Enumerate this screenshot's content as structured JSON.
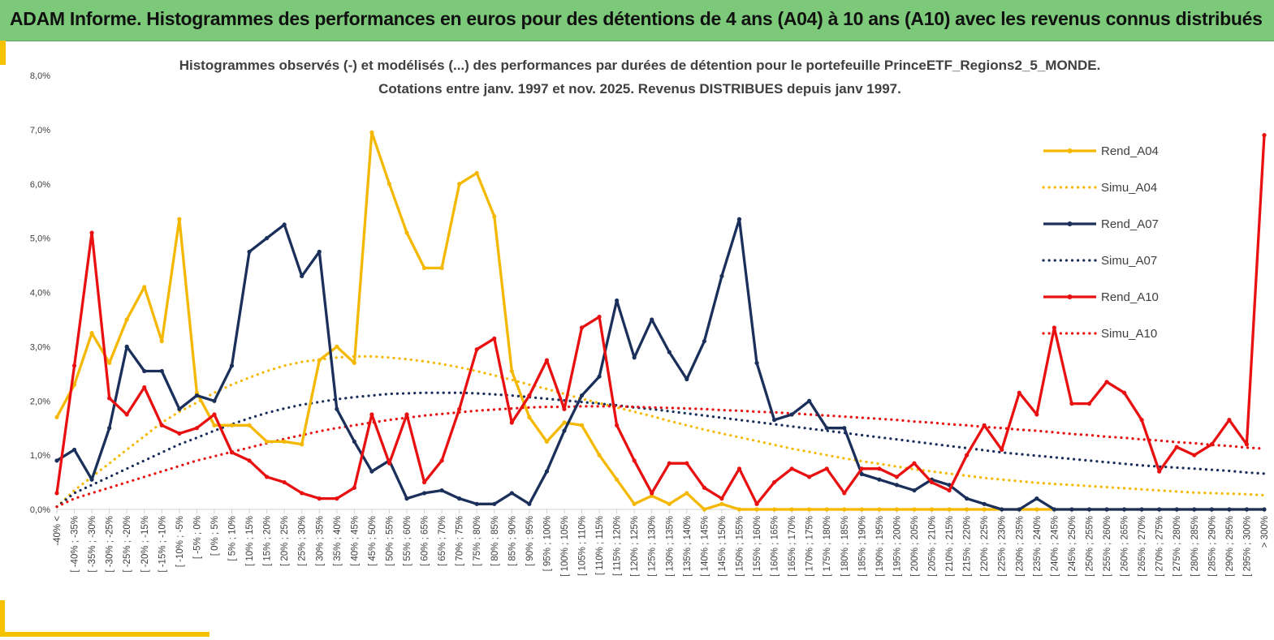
{
  "header": {
    "title": "ADAM Informe. Histogrammes des performances en euros pour des détentions de 4 ans (A04) à 10 ans (A10) avec les revenus connus distribués"
  },
  "chart_data": {
    "type": "line",
    "title_line1": "Histogrammes observés (-) et modélisés (...) des performances par durées de détention pour le portefeuille PrinceETF_Regions2_5_MONDE.",
    "title_line2": "Cotations entre janv. 1997 et nov. 2025. Revenus DISTRIBUES depuis janv 1997.",
    "ylim": [
      0,
      8
    ],
    "yticks": [
      "0,0%",
      "1,0%",
      "2,0%",
      "3,0%",
      "4,0%",
      "5,0%",
      "6,0%",
      "7,0%",
      "8,0%"
    ],
    "categories": [
      "-40% <",
      "[ -40% ; -35%",
      "[ -35% ; -30%",
      "[ -30% ; -25%",
      "[ -25% ; -20%",
      "[ -20% ; -15%",
      "[ -15% ; -10%",
      "[ -10% ; -5%",
      "[ -5% ; 0%",
      "[ 0% ; 5%",
      "[ 5% ; 10%",
      "[ 10% ; 15%",
      "[ 15% ; 20%",
      "[ 20% ; 25%",
      "[ 25% ; 30%",
      "[ 30% ; 35%",
      "[ 35% ; 40%",
      "[ 40% ; 45%",
      "[ 45% ; 50%",
      "[ 50% ; 55%",
      "[ 55% ; 60%",
      "[ 60% ; 65%",
      "[ 65% ; 70%",
      "[ 70% ; 75%",
      "[ 75% ; 80%",
      "[ 80% ; 85%",
      "[ 85% ; 90%",
      "[ 90% ; 95%",
      "[ 95% ; 100%",
      "[ 100% ; 105%",
      "[ 105% ; 110%",
      "[ 110% ; 115%",
      "[ 115% ; 120%",
      "[ 120% ; 125%",
      "[ 125% ; 130%",
      "[ 130% ; 135%",
      "[ 135% ; 140%",
      "[ 140% ; 145%",
      "[ 145% ; 150%",
      "[ 150% ; 155%",
      "[ 155% ; 160%",
      "[ 160% ; 165%",
      "[ 165% ; 170%",
      "[ 170% ; 175%",
      "[ 175% ; 180%",
      "[ 180% ; 185%",
      "[ 185% ; 190%",
      "[ 190% ; 195%",
      "[ 195% ; 200%",
      "[ 200% ; 205%",
      "[ 205% ; 210%",
      "[ 210% ; 215%",
      "[ 215% ; 220%",
      "[ 220% ; 225%",
      "[ 225% ; 230%",
      "[ 230% ; 235%",
      "[ 235% ; 240%",
      "[ 240% ; 245%",
      "[ 245% ; 250%",
      "[ 250% ; 255%",
      "[ 255% ; 260%",
      "[ 260% ; 265%",
      "[ 265% ; 270%",
      "[ 270% ; 275%",
      "[ 275% ; 280%",
      "[ 280% ; 285%",
      "[ 285% ; 290%",
      "[ 290% ; 295%",
      "[ 295% ; 300%",
      "> 300%"
    ],
    "series": [
      {
        "name": "Rend_A04",
        "style": "solid",
        "color": "#f5b800",
        "values": [
          1.7,
          2.3,
          3.25,
          2.7,
          3.5,
          4.1,
          3.1,
          5.35,
          2.15,
          1.55,
          1.55,
          1.55,
          1.25,
          1.25,
          1.2,
          2.75,
          3.0,
          2.7,
          6.95,
          6.0,
          5.1,
          4.45,
          4.45,
          6.0,
          6.2,
          5.4,
          2.55,
          1.7,
          1.25,
          1.6,
          1.55,
          1.0,
          0.55,
          0.1,
          0.25,
          0.1,
          0.3,
          0.0,
          0.1,
          0.0,
          0.0,
          0.0,
          0.0,
          0.0,
          0.0,
          0.0,
          0.0,
          0.0,
          0.0,
          0.0,
          0.0,
          0.0,
          0.0,
          0.0,
          0.0,
          0.0,
          0.0,
          0.0,
          0.0,
          0.0,
          0.0,
          0.0,
          0.0,
          0.0,
          0.0,
          0.0,
          0.0,
          0.0,
          0.0,
          0.0
        ]
      },
      {
        "name": "Simu_A04",
        "style": "dotted",
        "color": "#f5b800",
        "values": [
          0.05,
          0.35,
          0.6,
          0.85,
          1.1,
          1.35,
          1.6,
          1.8,
          1.97,
          2.15,
          2.3,
          2.43,
          2.55,
          2.65,
          2.72,
          2.76,
          2.8,
          2.82,
          2.82,
          2.8,
          2.77,
          2.73,
          2.68,
          2.62,
          2.55,
          2.47,
          2.39,
          2.3,
          2.22,
          2.13,
          2.04,
          1.96,
          1.88,
          1.8,
          1.72,
          1.63,
          1.55,
          1.47,
          1.4,
          1.33,
          1.26,
          1.19,
          1.12,
          1.06,
          1.0,
          0.94,
          0.89,
          0.84,
          0.79,
          0.74,
          0.7,
          0.66,
          0.62,
          0.58,
          0.55,
          0.52,
          0.49,
          0.47,
          0.45,
          0.43,
          0.41,
          0.39,
          0.37,
          0.35,
          0.33,
          0.31,
          0.3,
          0.29,
          0.28,
          0.26
        ]
      },
      {
        "name": "Rend_A07",
        "style": "solid",
        "color": "#1a2f5a",
        "values": [
          0.9,
          1.1,
          0.55,
          1.5,
          3.0,
          2.55,
          2.55,
          1.85,
          2.1,
          2.0,
          2.65,
          4.75,
          5.0,
          5.25,
          4.3,
          4.75,
          1.85,
          1.25,
          0.7,
          0.9,
          0.2,
          0.3,
          0.35,
          0.2,
          0.1,
          0.1,
          0.3,
          0.1,
          0.7,
          1.45,
          2.1,
          2.45,
          3.85,
          2.8,
          3.5,
          2.9,
          2.4,
          3.1,
          4.3,
          5.35,
          2.7,
          1.65,
          1.75,
          2.0,
          1.5,
          1.5,
          0.65,
          0.55,
          0.45,
          0.35,
          0.55,
          0.45,
          0.2,
          0.1,
          0.0,
          0.0,
          0.2,
          0.0,
          0.0,
          0.0,
          0.0,
          0.0,
          0.0,
          0.0,
          0.0,
          0.0,
          0.0,
          0.0,
          0.0,
          0.0
        ]
      },
      {
        "name": "Simu_A07",
        "style": "dotted",
        "color": "#1a2f5a",
        "values": [
          0.05,
          0.3,
          0.45,
          0.6,
          0.75,
          0.9,
          1.05,
          1.2,
          1.32,
          1.45,
          1.57,
          1.68,
          1.78,
          1.86,
          1.93,
          1.98,
          2.03,
          2.07,
          2.1,
          2.13,
          2.14,
          2.15,
          2.15,
          2.15,
          2.14,
          2.12,
          2.1,
          2.07,
          2.04,
          2.01,
          1.98,
          1.95,
          1.92,
          1.88,
          1.85,
          1.81,
          1.77,
          1.73,
          1.69,
          1.65,
          1.61,
          1.57,
          1.53,
          1.49,
          1.45,
          1.41,
          1.37,
          1.33,
          1.29,
          1.25,
          1.21,
          1.17,
          1.13,
          1.09,
          1.05,
          1.02,
          0.99,
          0.96,
          0.93,
          0.9,
          0.87,
          0.84,
          0.81,
          0.79,
          0.77,
          0.75,
          0.73,
          0.71,
          0.68,
          0.66
        ]
      },
      {
        "name": "Rend_A10",
        "style": "solid",
        "color": "#e81010",
        "values": [
          0.3,
          2.65,
          5.1,
          2.05,
          1.75,
          2.25,
          1.55,
          1.4,
          1.5,
          1.75,
          1.05,
          0.9,
          0.6,
          0.5,
          0.3,
          0.2,
          0.2,
          0.4,
          1.75,
          0.85,
          1.75,
          0.5,
          0.9,
          1.85,
          2.95,
          3.15,
          1.6,
          2.1,
          2.75,
          1.85,
          3.35,
          3.55,
          1.55,
          0.9,
          0.3,
          0.85,
          0.85,
          0.4,
          0.2,
          0.75,
          0.1,
          0.5,
          0.75,
          0.6,
          0.75,
          0.3,
          0.75,
          0.75,
          0.6,
          0.85,
          0.5,
          0.35,
          1.0,
          1.55,
          1.1,
          2.15,
          1.75,
          3.35,
          1.95,
          1.95,
          2.35,
          2.15,
          1.65,
          0.7,
          1.15,
          1.0,
          1.2,
          1.65,
          1.2,
          6.9
        ]
      },
      {
        "name": "Simu_A10",
        "style": "dotted",
        "color": "#e81010",
        "values": [
          0.05,
          0.2,
          0.3,
          0.4,
          0.5,
          0.6,
          0.7,
          0.8,
          0.9,
          0.98,
          1.06,
          1.14,
          1.22,
          1.3,
          1.37,
          1.44,
          1.5,
          1.55,
          1.6,
          1.65,
          1.69,
          1.73,
          1.76,
          1.79,
          1.82,
          1.84,
          1.86,
          1.88,
          1.89,
          1.89,
          1.9,
          1.9,
          1.9,
          1.89,
          1.88,
          1.87,
          1.86,
          1.85,
          1.83,
          1.82,
          1.8,
          1.79,
          1.77,
          1.75,
          1.73,
          1.71,
          1.69,
          1.67,
          1.65,
          1.62,
          1.6,
          1.57,
          1.55,
          1.52,
          1.5,
          1.47,
          1.45,
          1.42,
          1.39,
          1.37,
          1.34,
          1.32,
          1.29,
          1.27,
          1.24,
          1.22,
          1.19,
          1.17,
          1.14,
          1.12
        ]
      }
    ],
    "legend": [
      "Rend_A04",
      "Simu_A04",
      "Rend_A07",
      "Simu_A07",
      "Rend_A10",
      "Simu_A10"
    ],
    "legend_position": "right"
  }
}
